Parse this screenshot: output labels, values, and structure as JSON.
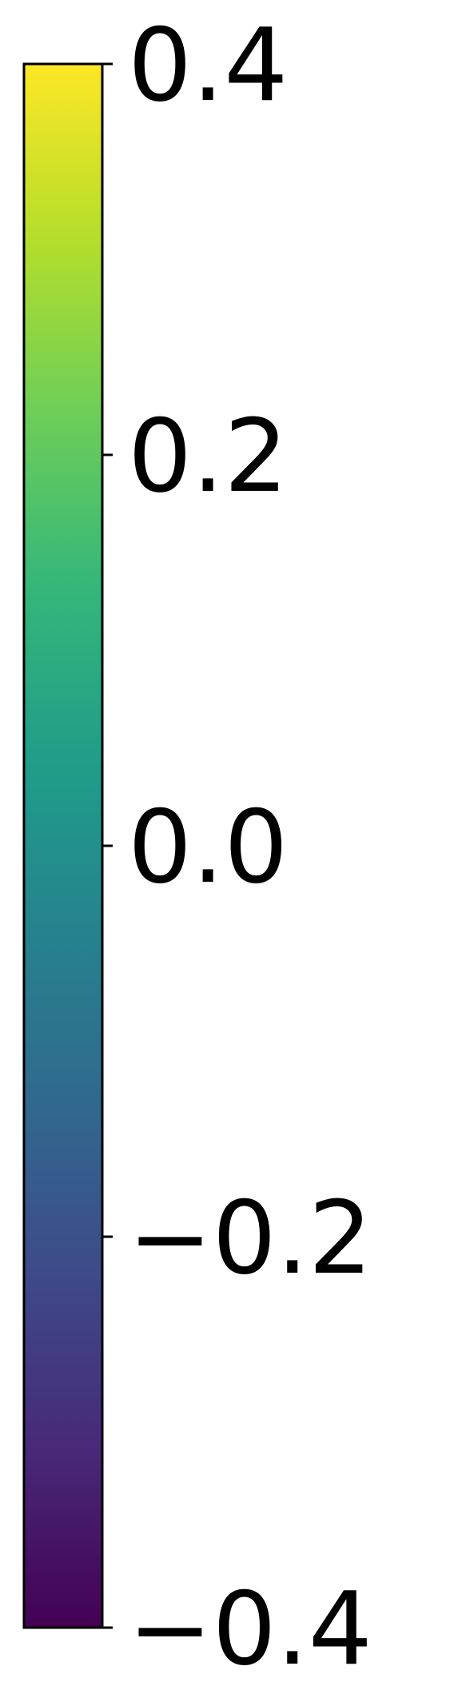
{
  "chart_data": {
    "type": "heatmap",
    "title": "",
    "xlabel": "",
    "ylabel": "",
    "colormap": "viridis",
    "colorbar": {
      "orientation": "vertical",
      "vmin": -0.4,
      "vmax": 0.4,
      "ticks": [
        0.4,
        0.2,
        0.0,
        -0.2,
        -0.4
      ],
      "tick_labels": [
        "0.4",
        "0.2",
        "0.0",
        "−0.2",
        "−0.4"
      ],
      "gradient_colors": [
        "#440154",
        "#482878",
        "#3e4989",
        "#31688e",
        "#26828e",
        "#1f9e89",
        "#35b779",
        "#6ece58",
        "#b5de2b",
        "#fde725"
      ]
    }
  }
}
